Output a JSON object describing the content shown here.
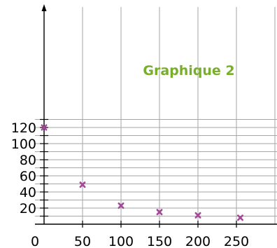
{
  "chart_data": {
    "type": "scatter",
    "title": "Graphique 2",
    "x_ticks": [
      "50",
      "100",
      "150",
      "200",
      "250"
    ],
    "y_ticks": [
      "20",
      "40",
      "60",
      "80",
      "100",
      "120"
    ],
    "origin_label": "0",
    "xlim": [
      0,
      300
    ],
    "ylim": [
      0,
      130
    ],
    "grid": true,
    "series": [
      {
        "x": [
          0,
          50,
          100,
          150,
          200,
          255
        ],
        "y": [
          120,
          49,
          23,
          15,
          11,
          8
        ]
      }
    ]
  },
  "colors": {
    "marker": "#a4489a",
    "title": "#79ad2c",
    "grid": "#a6a6a6",
    "axis": "#000000"
  }
}
